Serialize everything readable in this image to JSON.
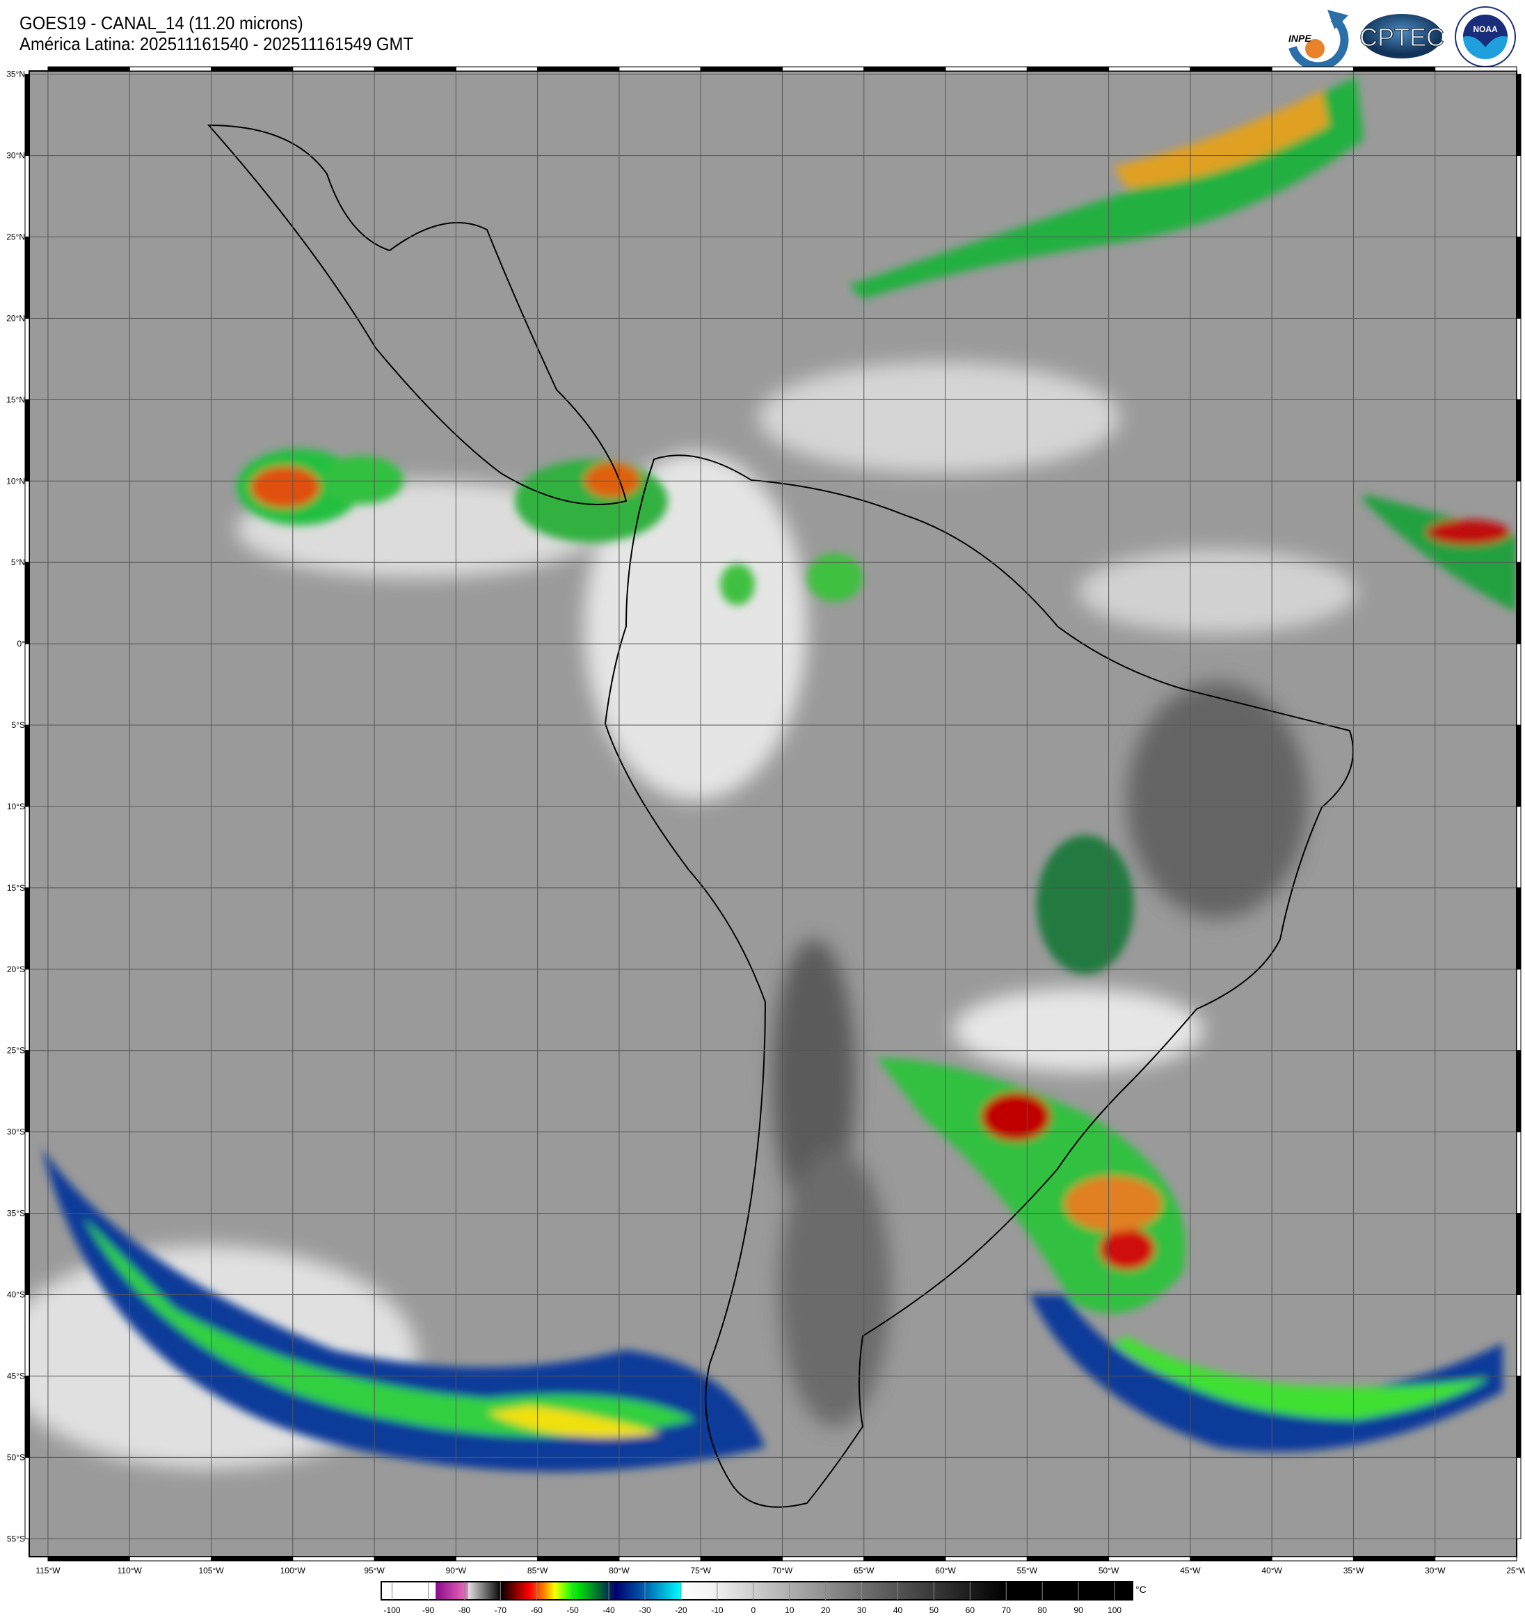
{
  "header": {
    "title": "GOES19 - CANAL_14 (11.20 microns)",
    "subtitle": "América Latina: 202511161540 - 202511161549 GMT"
  },
  "logos": [
    {
      "name": "INPE",
      "text": "INPE"
    },
    {
      "name": "CPTEC",
      "text": "CPTEC"
    },
    {
      "name": "NOAA",
      "text": "NOAA"
    }
  ],
  "map": {
    "lon_range": [
      -116.15,
      -25
    ],
    "lat_range": [
      35.2,
      -56.1
    ],
    "lon_ticks": [
      "115°W",
      "110°W",
      "105°W",
      "100°W",
      "95°W",
      "90°W",
      "85°W",
      "80°W",
      "75°W",
      "70°W",
      "65°W",
      "60°W",
      "55°W",
      "50°W",
      "45°W",
      "40°W",
      "35°W",
      "30°W",
      "25°W"
    ],
    "lat_ticks": [
      "35°N",
      "30°N",
      "25°N",
      "20°N",
      "15°N",
      "10°N",
      "5°N",
      "0°",
      "5°S",
      "10°S",
      "15°S",
      "20°S",
      "25°S",
      "30°S",
      "35°S",
      "40°S",
      "45°S",
      "50°S",
      "55°S"
    ],
    "background_color": "#9a9a9a"
  },
  "colorbar": {
    "unit": "°C",
    "range": [
      -103,
      105
    ],
    "ticks": [
      "-100",
      "-90",
      "-80",
      "-70",
      "-60",
      "-50",
      "-40",
      "-30",
      "-20",
      "-10",
      "0",
      "10",
      "20",
      "30",
      "40",
      "50",
      "60",
      "70",
      "80",
      "90",
      "100"
    ],
    "stops": [
      {
        "v": -103,
        "c": "#ffffff"
      },
      {
        "v": -88,
        "c": "#ffffff"
      },
      {
        "v": -87.9,
        "c": "#8a0a8a"
      },
      {
        "v": -79,
        "c": "#f070c0"
      },
      {
        "v": -78.9,
        "c": "#e0e0e0"
      },
      {
        "v": -71,
        "c": "#202020"
      },
      {
        "v": -70,
        "c": "#000000"
      },
      {
        "v": -62,
        "c": "#ff0000"
      },
      {
        "v": -58,
        "c": "#ff8000"
      },
      {
        "v": -55,
        "c": "#ffff00"
      },
      {
        "v": -50,
        "c": "#00ff00"
      },
      {
        "v": -43,
        "c": "#007030"
      },
      {
        "v": -38,
        "c": "#000070"
      },
      {
        "v": -30,
        "c": "#0060b0"
      },
      {
        "v": -20,
        "c": "#00ffff"
      },
      {
        "v": -19.9,
        "c": "#ffffff"
      },
      {
        "v": -12,
        "c": "#f4f4f4"
      },
      {
        "v": 30,
        "c": "#707070"
      },
      {
        "v": 70,
        "c": "#000000"
      },
      {
        "v": 105,
        "c": "#000000"
      }
    ]
  }
}
